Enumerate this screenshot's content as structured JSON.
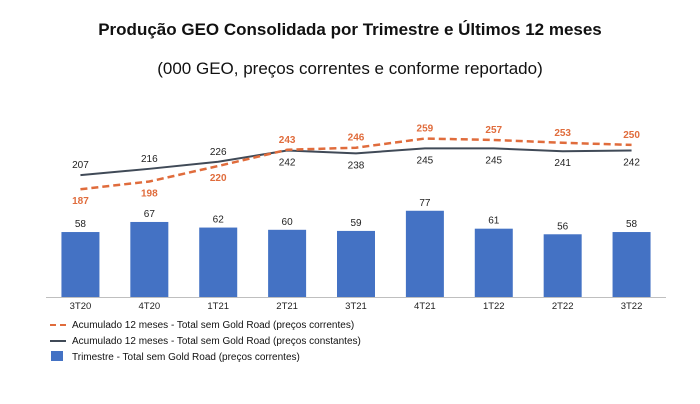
{
  "chart_data": {
    "type": "bar",
    "title": "Produção GEO Consolidada por Trimestre e Últimos 12 meses",
    "subtitle": "(000 GEO, preços correntes e conforme reportado)",
    "categories": [
      "3T20",
      "4T20",
      "1T21",
      "2T21",
      "3T21",
      "4T21",
      "1T22",
      "2T22",
      "3T22"
    ],
    "series": [
      {
        "name": "Acumulado 12 meses - Total sem Gold Road (preços correntes)",
        "kind": "line-dashed",
        "color": "#e06c3c",
        "values": [
          187,
          198,
          220,
          243,
          246,
          259,
          257,
          253,
          250
        ]
      },
      {
        "name": "Acumulado 12 meses - Total sem Gold Road (preços constantes)",
        "kind": "line",
        "color": "#404a57",
        "values": [
          207,
          216,
          226,
          242,
          238,
          245,
          245,
          241,
          242
        ]
      },
      {
        "name": "Trimestre - Total sem Gold Road (preços correntes)",
        "kind": "bar",
        "color": "#4472c4",
        "values": [
          58,
          67,
          62,
          60,
          59,
          77,
          61,
          56,
          58
        ]
      }
    ],
    "legend_position": "bottom-left",
    "grid": false
  }
}
